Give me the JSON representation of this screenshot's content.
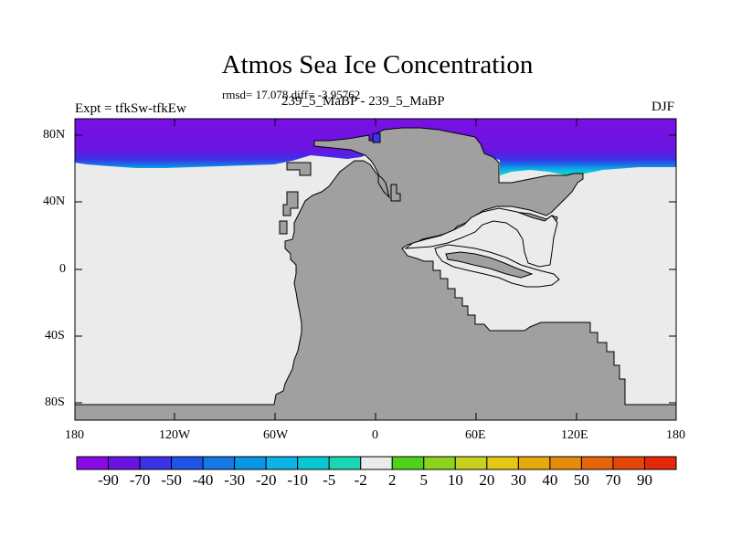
{
  "title": "Atmos Sea Ice Concentration",
  "stats": "rmsd= 17.078 diff= -3.95762",
  "left_label": "Expt = tfkSw-tfkEw",
  "center_label": "239_5_MaBP - 239_5_MaBP",
  "right_label": "DJF",
  "lat_labels": [
    "80N",
    "40N",
    "0",
    "40S",
    "80S"
  ],
  "lon_labels": [
    "180",
    "120W",
    "60W",
    "0",
    "60E",
    "120E",
    "180"
  ],
  "colorbar": {
    "labels": [
      "-90",
      "-70",
      "-50",
      "-40",
      "-30",
      "-20",
      "-10",
      "-5",
      "-2",
      "2",
      "5",
      "10",
      "20",
      "30",
      "40",
      "50",
      "70",
      "90"
    ],
    "colors": [
      "#8a0ae6",
      "#6a14e0",
      "#3c32e8",
      "#1e55e6",
      "#1478e6",
      "#0a96e6",
      "#0ab4e6",
      "#0ac8d2",
      "#19d7b4",
      "#ebebeb",
      "#50d219",
      "#8cd21e",
      "#c8d21e",
      "#e6c814",
      "#e6aa0a",
      "#e68c0a",
      "#e6640a",
      "#e6460a",
      "#e6280a"
    ]
  },
  "colors": {
    "land": "#a0a0a0",
    "ocean_no_change": "#ebebeb"
  }
}
